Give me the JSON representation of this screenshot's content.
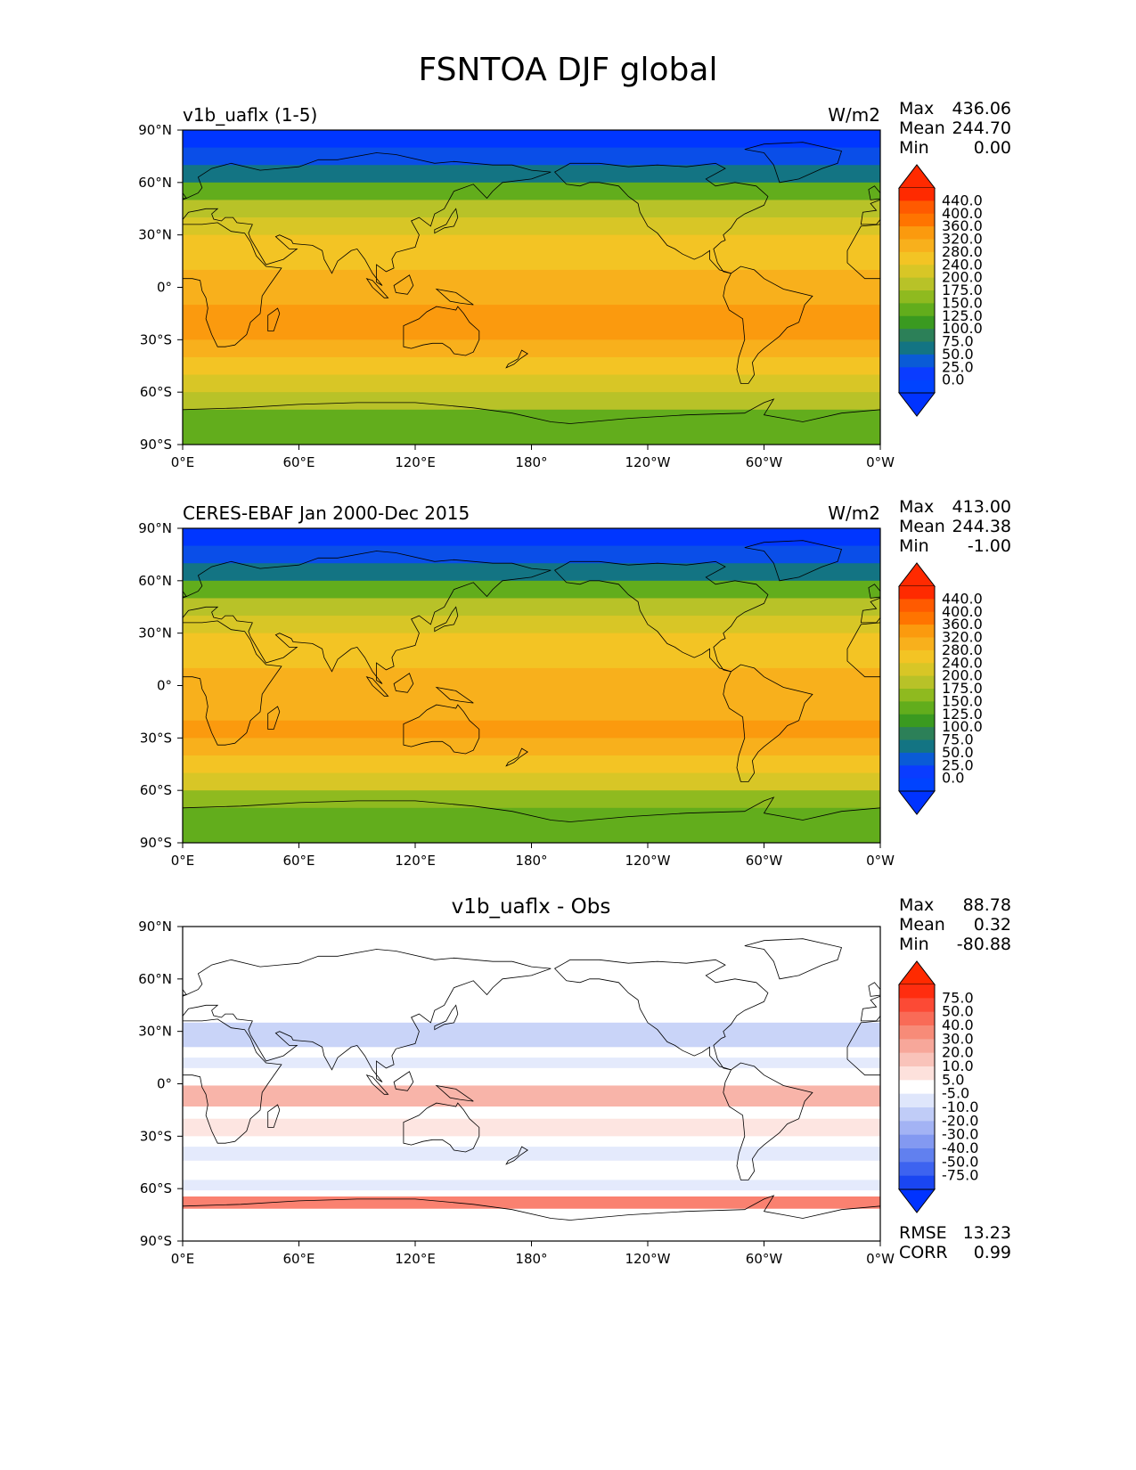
{
  "figure": {
    "title": "FSNTOA DJF global"
  },
  "panels": [
    {
      "id": "test",
      "left_title": "v1b_uaflx (1-5)",
      "center_title": "",
      "units": "W/m2",
      "stats": [
        {
          "label": "Max",
          "value": "436.06"
        },
        {
          "label": "Mean",
          "value": "244.70"
        },
        {
          "label": "Min",
          "value": "0.00"
        }
      ],
      "footer_stats": [],
      "colorbar": {
        "labels": [
          "440.0",
          "400.0",
          "360.0",
          "320.0",
          "280.0",
          "240.0",
          "200.0",
          "175.0",
          "150.0",
          "125.0",
          "100.0",
          "75.0",
          "50.0",
          "25.0",
          "0.0"
        ],
        "colors": [
          "#ff2a00",
          "#ff5a00",
          "#ff7400",
          "#fb9a0e",
          "#f8b01c",
          "#f3c424",
          "#d8c626",
          "#b8c228",
          "#8fba1f",
          "#62ad1c",
          "#3a9a20",
          "#2c8058",
          "#137483",
          "#0a5bd6",
          "#0a3cff",
          "#0043ff"
        ],
        "extend_top": "#ff2a00",
        "extend_bottom": "#0033ff"
      }
    },
    {
      "id": "reference",
      "left_title": "CERES-EBAF Jan 2000-Dec 2015",
      "center_title": "",
      "units": "W/m2",
      "stats": [
        {
          "label": "Max",
          "value": "413.00"
        },
        {
          "label": "Mean",
          "value": "244.38"
        },
        {
          "label": "Min",
          "value": "-1.00"
        }
      ],
      "footer_stats": [],
      "colorbar": {
        "labels": [
          "440.0",
          "400.0",
          "360.0",
          "320.0",
          "280.0",
          "240.0",
          "200.0",
          "175.0",
          "150.0",
          "125.0",
          "100.0",
          "75.0",
          "50.0",
          "25.0",
          "0.0"
        ],
        "colors": [
          "#ff2a00",
          "#ff5a00",
          "#ff7400",
          "#fb9a0e",
          "#f8b01c",
          "#f3c424",
          "#d8c626",
          "#b8c228",
          "#8fba1f",
          "#62ad1c",
          "#3a9a20",
          "#2c8058",
          "#137483",
          "#0a5bd6",
          "#0a3cff",
          "#0043ff"
        ],
        "extend_top": "#ff2a00",
        "extend_bottom": "#0033ff"
      }
    },
    {
      "id": "difference",
      "left_title": "",
      "center_title": "v1b_uaflx - Obs",
      "units": "",
      "stats": [
        {
          "label": "Max",
          "value": "88.78"
        },
        {
          "label": "Mean",
          "value": "0.32"
        },
        {
          "label": "Min",
          "value": "-80.88"
        }
      ],
      "footer_stats": [
        {
          "label": "RMSE",
          "value": "13.23"
        },
        {
          "label": "CORR",
          "value": "0.99"
        }
      ],
      "colorbar": {
        "labels": [
          "75.0",
          "50.0",
          "40.0",
          "30.0",
          "20.0",
          "10.0",
          "5.0",
          "-5.0",
          "-10.0",
          "-20.0",
          "-30.0",
          "-40.0",
          "-50.0",
          "-75.0"
        ],
        "colors": [
          "#ff2d0f",
          "#fc4a35",
          "#f96b57",
          "#f78b78",
          "#f7a79a",
          "#f9c3ba",
          "#fde1dc",
          "#ffffff",
          "#dfe6fb",
          "#c0ccf7",
          "#a3b3f4",
          "#8399f1",
          "#6180ef",
          "#3d63f0",
          "#1a46f2"
        ],
        "extend_top": "#ff2a00",
        "extend_bottom": "#0033ff"
      }
    }
  ],
  "axes": {
    "x_ticks": [
      "0°E",
      "60°E",
      "120°E",
      "180°",
      "120°W",
      "60°W",
      "0°W"
    ],
    "y_ticks": [
      "90°N",
      "60°N",
      "30°N",
      "0°",
      "30°S",
      "60°S",
      "90°S"
    ]
  },
  "chart_data": [
    {
      "type": "heatmap",
      "title": "v1b_uaflx (1-5)",
      "units": "W/m2",
      "x_range": [
        0,
        360
      ],
      "y_range": [
        -90,
        90
      ],
      "levels": [
        0,
        25,
        50,
        75,
        100,
        125,
        150,
        175,
        200,
        240,
        280,
        320,
        360,
        400,
        440
      ],
      "zonal_profile_lat": [
        90,
        85,
        75,
        65,
        55,
        45,
        35,
        25,
        15,
        5,
        -5,
        -15,
        -25,
        -35,
        -45,
        -55,
        -65,
        -75,
        -85
      ],
      "zonal_profile_value": [
        0,
        5,
        40,
        90,
        150,
        210,
        260,
        290,
        315,
        330,
        350,
        360,
        365,
        355,
        310,
        260,
        200,
        170,
        160
      ],
      "max": 436.06,
      "mean": 244.7,
      "min": 0.0
    },
    {
      "type": "heatmap",
      "title": "CERES-EBAF Jan 2000-Dec 2015",
      "units": "W/m2",
      "x_range": [
        0,
        360
      ],
      "y_range": [
        -90,
        90
      ],
      "levels": [
        0,
        25,
        50,
        75,
        100,
        125,
        150,
        175,
        200,
        240,
        280,
        320,
        360,
        400,
        440
      ],
      "zonal_profile_lat": [
        90,
        85,
        75,
        65,
        55,
        45,
        35,
        25,
        15,
        5,
        -5,
        -15,
        -25,
        -35,
        -45,
        -55,
        -65,
        -75,
        -85
      ],
      "zonal_profile_value": [
        0,
        5,
        40,
        90,
        150,
        205,
        255,
        290,
        315,
        330,
        345,
        355,
        360,
        350,
        305,
        255,
        195,
        165,
        155
      ],
      "max": 413.0,
      "mean": 244.38,
      "min": -1.0
    },
    {
      "type": "heatmap",
      "title": "v1b_uaflx - Obs",
      "x_range": [
        0,
        360
      ],
      "y_range": [
        -90,
        90
      ],
      "levels": [
        -75,
        -50,
        -40,
        -30,
        -20,
        -10,
        -5,
        5,
        10,
        20,
        30,
        40,
        50,
        75
      ],
      "max": 88.78,
      "mean": 0.32,
      "min": -80.88,
      "rmse": 13.23,
      "corr": 0.99
    }
  ]
}
